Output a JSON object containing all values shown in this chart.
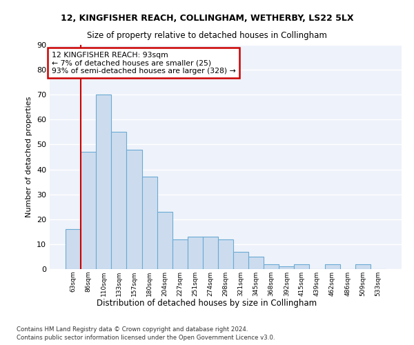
{
  "title1": "12, KINGFISHER REACH, COLLINGHAM, WETHERBY, LS22 5LX",
  "title2": "Size of property relative to detached houses in Collingham",
  "xlabel": "Distribution of detached houses by size in Collingham",
  "ylabel": "Number of detached properties",
  "bar_labels": [
    "63sqm",
    "86sqm",
    "110sqm",
    "133sqm",
    "157sqm",
    "180sqm",
    "204sqm",
    "227sqm",
    "251sqm",
    "274sqm",
    "298sqm",
    "321sqm",
    "345sqm",
    "368sqm",
    "392sqm",
    "415sqm",
    "439sqm",
    "462sqm",
    "486sqm",
    "509sqm",
    "533sqm"
  ],
  "bar_values": [
    16,
    47,
    70,
    55,
    48,
    37,
    23,
    12,
    13,
    13,
    12,
    7,
    5,
    2,
    1,
    2,
    0,
    2,
    0,
    2,
    0
  ],
  "bar_color": "#ccdcee",
  "bar_edge_color": "#6aaad4",
  "background_color": "#eef2fa",
  "fig_background_color": "#ffffff",
  "grid_color": "#ffffff",
  "red_line_x": 1.0,
  "annotation_text": "12 KINGFISHER REACH: 93sqm\n← 7% of detached houses are smaller (25)\n93% of semi-detached houses are larger (328) →",
  "annotation_box_color": "#ffffff",
  "annotation_box_edge": "#cc0000",
  "red_line_color": "#cc0000",
  "ylim": [
    0,
    90
  ],
  "yticks": [
    0,
    10,
    20,
    30,
    40,
    50,
    60,
    70,
    80,
    90
  ],
  "footer1": "Contains HM Land Registry data © Crown copyright and database right 2024.",
  "footer2": "Contains public sector information licensed under the Open Government Licence v3.0."
}
